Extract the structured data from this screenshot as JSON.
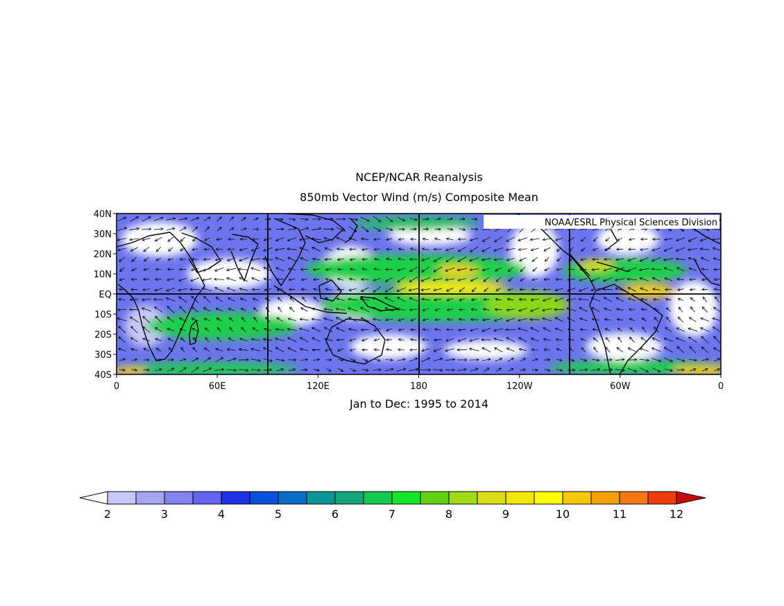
{
  "titles": {
    "line1": "NCEP/NCAR Reanalysis",
    "line2": "850mb Vector Wind (m/s) Composite Mean",
    "credit": "NOAA/ESRL Physical Sciences Division",
    "period": "Jan to Dec: 1995 to 2014"
  },
  "map": {
    "lon_range": [
      0,
      360
    ],
    "lat_range": [
      -40,
      40
    ],
    "projection": "cylindrical-equidistant",
    "x_ticks": [
      {
        "lon": 0,
        "label": "0"
      },
      {
        "lon": 60,
        "label": "60E"
      },
      {
        "lon": 120,
        "label": "120E"
      },
      {
        "lon": 180,
        "label": "180"
      },
      {
        "lon": 240,
        "label": "120W"
      },
      {
        "lon": 300,
        "label": "60W"
      },
      {
        "lon": 360,
        "label": "0"
      }
    ],
    "y_ticks": [
      {
        "lat": 40,
        "label": "40N"
      },
      {
        "lat": 30,
        "label": "30N"
      },
      {
        "lat": 20,
        "label": "20N"
      },
      {
        "lat": 10,
        "label": "10N"
      },
      {
        "lat": 0,
        "label": "EQ"
      },
      {
        "lat": -10,
        "label": "10S"
      },
      {
        "lat": -20,
        "label": "20S"
      },
      {
        "lat": -30,
        "label": "30S"
      },
      {
        "lat": -40,
        "label": "40S"
      }
    ],
    "reference_lines": {
      "equator_lat": 0,
      "meridians_lon": [
        90,
        180,
        270
      ]
    }
  },
  "colorbar": {
    "colors": [
      "#c8c8f5",
      "#a5a5f0",
      "#8282f0",
      "#6464f0",
      "#1e32e6",
      "#0a50dc",
      "#0a6ec8",
      "#0a9696",
      "#14a57d",
      "#14c850",
      "#14e628",
      "#64d214",
      "#a0dc14",
      "#dcdc14",
      "#f5e60a",
      "#ffff00",
      "#f5c80a",
      "#f5a000",
      "#f57814",
      "#f03c0a",
      "#c80a0a"
    ],
    "ticks": [
      {
        "value": 2,
        "label": "2"
      },
      {
        "value": 3,
        "label": "3"
      },
      {
        "value": 4,
        "label": "4"
      },
      {
        "value": 5,
        "label": "5"
      },
      {
        "value": 6,
        "label": "6"
      },
      {
        "value": 7,
        "label": "7"
      },
      {
        "value": 8,
        "label": "8"
      },
      {
        "value": 9,
        "label": "9"
      },
      {
        "value": 10,
        "label": "10"
      },
      {
        "value": 11,
        "label": "11"
      },
      {
        "value": 12,
        "label": "12"
      }
    ]
  }
}
